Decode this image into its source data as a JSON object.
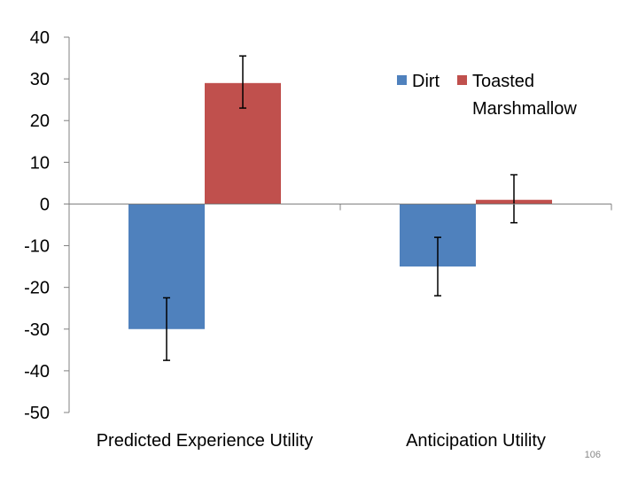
{
  "slide_number": "106",
  "colors": {
    "dirt": "#4f81bd",
    "marshmallow": "#c0504d",
    "axis": "#808080",
    "error_bar": "#000000"
  },
  "chart_data": {
    "type": "bar",
    "title": "",
    "xlabel": "",
    "ylabel": "",
    "categories": [
      "Predicted Experience Utility",
      "Anticipation Utility"
    ],
    "series": [
      {
        "name": "Dirt",
        "values": [
          -30,
          -15
        ],
        "error_low": [
          -37.5,
          -22
        ],
        "error_high": [
          -22.5,
          -8
        ]
      },
      {
        "name": "Toasted Marshmallow",
        "legend_lines": [
          "Toasted",
          "Marshmallow"
        ],
        "values": [
          29,
          1
        ],
        "error_low": [
          23,
          -4.5
        ],
        "error_high": [
          35.5,
          7
        ]
      }
    ],
    "ylim": [
      -50,
      40
    ],
    "yticks": [
      40,
      30,
      20,
      10,
      0,
      -10,
      -20,
      -30,
      -40,
      -50
    ],
    "ytick_labels": [
      "40",
      "30",
      "20",
      "10",
      "0",
      "-10",
      "-20",
      "-30",
      "-40",
      "-50"
    ],
    "grid": false,
    "legend": "top-right"
  }
}
